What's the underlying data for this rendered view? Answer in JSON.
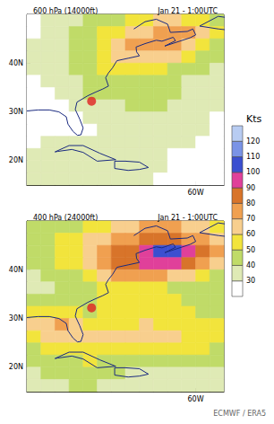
{
  "source": "ECMWF / ERA5",
  "colorbar": {
    "title": "Kts",
    "range": [
      20,
      130
    ],
    "ticks": [
      30,
      40,
      50,
      60,
      70,
      80,
      90,
      100,
      110,
      120
    ],
    "colors": [
      "#ffffff",
      "#dfeab5",
      "#c0db68",
      "#f2e43c",
      "#f8cf8e",
      "#f0a050",
      "#d8742a",
      "#e0409a",
      "#3b4fd0",
      "#7a93e6",
      "#b8ccf2"
    ]
  },
  "coastlines": [
    [
      [
        -90,
        30.2
      ],
      [
        -88,
        30.4
      ],
      [
        -86,
        30.4
      ],
      [
        -84.3,
        30
      ],
      [
        -83,
        29
      ],
      [
        -82.7,
        27.5
      ],
      [
        -81.8,
        26
      ],
      [
        -81,
        25.2
      ],
      [
        -80.4,
        25.3
      ],
      [
        -80,
        26.7
      ],
      [
        -80.6,
        28.5
      ],
      [
        -81.4,
        30.5
      ],
      [
        -81.1,
        32
      ],
      [
        -79.2,
        33.3
      ],
      [
        -77.9,
        34
      ],
      [
        -76.5,
        34.7
      ],
      [
        -75.5,
        35.3
      ],
      [
        -76,
        37
      ],
      [
        -75.5,
        38
      ],
      [
        -74.8,
        39
      ],
      [
        -74,
        40.5
      ],
      [
        -72,
        41
      ],
      [
        -70,
        41.5
      ],
      [
        -70.5,
        42.3
      ],
      [
        -70.6,
        43.3
      ],
      [
        -69,
        44
      ],
      [
        -67,
        44.7
      ],
      [
        -66,
        44.5
      ],
      [
        -64,
        45.3
      ],
      [
        -63.6,
        44.6
      ],
      [
        -65.5,
        43.5
      ],
      [
        -61,
        45.2
      ],
      [
        -60,
        45.8
      ],
      [
        -60.5,
        47
      ],
      [
        -61.5,
        46.5
      ],
      [
        -64.5,
        46.3
      ],
      [
        -65,
        48
      ],
      [
        -67,
        49
      ],
      [
        -69,
        48.5
      ],
      [
        -71,
        47
      ]
    ],
    [
      [
        -85,
        21.8
      ],
      [
        -82.5,
        23.1
      ],
      [
        -80,
        23.1
      ],
      [
        -77,
        21.5
      ],
      [
        -74.2,
        20.2
      ],
      [
        -77.5,
        19.9
      ],
      [
        -80,
        21.7
      ],
      [
        -82,
        22.3
      ],
      [
        -84.5,
        21.9
      ],
      [
        -85,
        21.8
      ]
    ],
    [
      [
        -74.4,
        19.9
      ],
      [
        -72.5,
        19.9
      ],
      [
        -70,
        19.7
      ],
      [
        -68.4,
        18.6
      ],
      [
        -70,
        18.2
      ],
      [
        -72,
        18
      ],
      [
        -74.4,
        18.4
      ],
      [
        -74.4,
        19.9
      ]
    ],
    [
      [
        -59.3,
        47.6
      ],
      [
        -56,
        49.6
      ],
      [
        -53.6,
        49.2
      ],
      [
        -52.7,
        47.5
      ],
      [
        -53.5,
        46.7
      ],
      [
        -55.9,
        47
      ],
      [
        -59.3,
        47.6
      ]
    ]
  ],
  "chart_data": [
    {
      "type": "heatmap",
      "title": "600 hPa (14000ft)",
      "subtitle": "Jan 21 - 1:00UTC",
      "xlim": [
        -90,
        -55
      ],
      "ylim": [
        15,
        50
      ],
      "xticks": [
        {
          "value": -60,
          "label": "60W"
        }
      ],
      "yticks": [
        {
          "value": 20,
          "label": "20N"
        },
        {
          "value": 30,
          "label": "30N"
        },
        {
          "value": 40,
          "label": "40N"
        }
      ],
      "x": [
        -88.75,
        -86.25,
        -83.75,
        -81.25,
        -78.75,
        -76.25,
        -73.75,
        -71.25,
        -68.75,
        -66.25,
        -63.75,
        -61.25,
        -58.75,
        -56.25
      ],
      "y": [
        48.75,
        46.25,
        43.75,
        41.25,
        38.75,
        36.25,
        33.75,
        31.25,
        28.75,
        26.25,
        23.75,
        21.25,
        18.75,
        16.25
      ],
      "cells": [
        [
          28,
          30,
          35,
          38,
          42,
          45,
          48,
          52,
          55,
          60,
          62,
          58,
          52,
          45
        ],
        [
          28,
          32,
          36,
          40,
          45,
          50,
          55,
          62,
          68,
          72,
          75,
          70,
          60,
          50
        ],
        [
          30,
          34,
          38,
          42,
          48,
          55,
          62,
          70,
          75,
          78,
          74,
          68,
          58,
          48
        ],
        [
          32,
          35,
          38,
          42,
          48,
          55,
          60,
          65,
          68,
          66,
          62,
          55,
          48,
          42
        ],
        [
          30,
          34,
          36,
          40,
          45,
          50,
          55,
          58,
          56,
          52,
          48,
          45,
          40,
          36
        ],
        [
          28,
          32,
          35,
          38,
          42,
          46,
          48,
          46,
          44,
          42,
          40,
          38,
          36,
          34
        ],
        [
          26,
          28,
          32,
          36,
          40,
          42,
          44,
          46,
          45,
          42,
          40,
          38,
          35,
          32
        ],
        [
          24,
          25,
          28,
          30,
          34,
          36,
          38,
          40,
          42,
          40,
          38,
          36,
          34,
          30
        ],
        [
          22,
          24,
          26,
          28,
          30,
          32,
          34,
          35,
          34,
          33,
          32,
          34,
          32,
          28
        ],
        [
          24,
          26,
          28,
          26,
          28,
          30,
          32,
          33,
          32,
          30,
          30,
          32,
          30,
          28
        ],
        [
          28,
          30,
          32,
          30,
          30,
          32,
          34,
          34,
          33,
          32,
          30,
          30,
          28,
          26
        ],
        [
          30,
          32,
          34,
          34,
          33,
          34,
          35,
          34,
          32,
          30,
          28,
          28,
          26,
          24
        ],
        [
          32,
          34,
          35,
          36,
          35,
          35,
          34,
          33,
          32,
          30,
          28,
          26,
          25,
          24
        ],
        [
          34,
          35,
          36,
          36,
          35,
          34,
          33,
          32,
          30,
          28,
          26,
          25,
          24,
          24
        ]
      ],
      "point": {
        "x": -78.5,
        "y": 32.2,
        "color": "#e02020"
      }
    },
    {
      "type": "heatmap",
      "title": "400 hPa (24000ft)",
      "subtitle": "Jan 21 - 1:00UTC",
      "xlim": [
        -90,
        -55
      ],
      "ylim": [
        15,
        50
      ],
      "xticks": [
        {
          "value": -60,
          "label": "60W"
        }
      ],
      "yticks": [
        {
          "value": 20,
          "label": "20N"
        },
        {
          "value": 30,
          "label": "30N"
        },
        {
          "value": 40,
          "label": "40N"
        }
      ],
      "x": [
        -88.75,
        -86.25,
        -83.75,
        -81.25,
        -78.75,
        -76.25,
        -73.75,
        -71.25,
        -68.75,
        -66.25,
        -63.75,
        -61.25,
        -58.75,
        -56.25
      ],
      "y": [
        48.75,
        46.25,
        43.75,
        41.25,
        38.75,
        36.25,
        33.75,
        31.25,
        28.75,
        26.25,
        23.75,
        21.25,
        18.75,
        16.25
      ],
      "cells": [
        [
          40,
          42,
          45,
          48,
          52,
          58,
          62,
          66,
          70,
          72,
          70,
          65,
          60,
          55
        ],
        [
          42,
          45,
          50,
          55,
          60,
          66,
          72,
          78,
          82,
          86,
          84,
          78,
          70,
          62
        ],
        [
          45,
          48,
          52,
          58,
          65,
          72,
          80,
          88,
          95,
          100,
          104,
          96,
          85,
          72
        ],
        [
          42,
          45,
          50,
          58,
          66,
          75,
          82,
          88,
          94,
          98,
          92,
          84,
          74,
          62
        ],
        [
          38,
          40,
          44,
          48,
          56,
          64,
          70,
          74,
          76,
          74,
          68,
          62,
          55,
          48
        ],
        [
          36,
          38,
          40,
          42,
          46,
          50,
          54,
          56,
          55,
          52,
          48,
          45,
          42,
          40
        ],
        [
          40,
          42,
          44,
          46,
          48,
          52,
          55,
          56,
          54,
          52,
          50,
          48,
          46,
          44
        ],
        [
          50,
          54,
          56,
          52,
          48,
          50,
          54,
          55,
          54,
          52,
          52,
          50,
          48,
          46
        ],
        [
          62,
          68,
          70,
          64,
          58,
          56,
          56,
          58,
          60,
          58,
          56,
          55,
          52,
          50
        ],
        [
          58,
          64,
          66,
          66,
          62,
          60,
          62,
          64,
          66,
          64,
          60,
          58,
          56,
          54
        ],
        [
          48,
          52,
          56,
          58,
          58,
          56,
          56,
          58,
          56,
          54,
          52,
          52,
          50,
          48
        ],
        [
          42,
          44,
          46,
          48,
          50,
          48,
          46,
          46,
          44,
          44,
          42,
          42,
          40,
          40
        ],
        [
          38,
          40,
          42,
          42,
          44,
          42,
          40,
          38,
          38,
          38,
          36,
          36,
          36,
          36
        ],
        [
          36,
          38,
          38,
          40,
          40,
          38,
          36,
          34,
          34,
          34,
          34,
          34,
          32,
          32
        ]
      ],
      "point": {
        "x": -78.5,
        "y": 32.2,
        "color": "#e02020"
      }
    }
  ]
}
